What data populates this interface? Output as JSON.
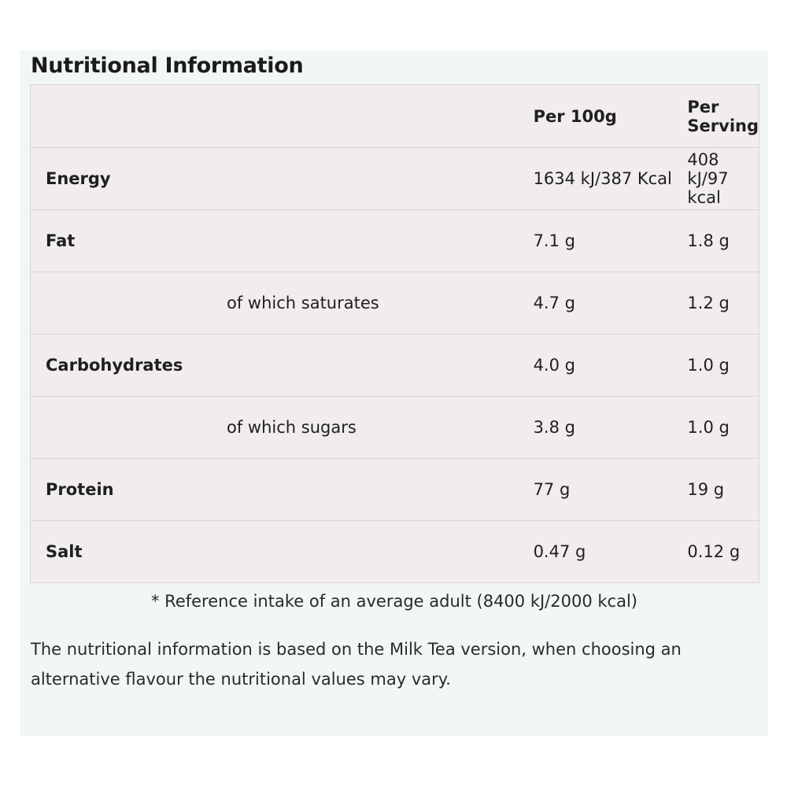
{
  "title": "Nutritional Information",
  "table": {
    "header": {
      "nutrient": "",
      "per_100g": "Per 100g",
      "per_serving": "Per Serving"
    },
    "rows": [
      {
        "label": "Energy",
        "per_100g": "1634 kJ/387 Kcal",
        "per_serving": "408 kJ/97 kcal"
      },
      {
        "label": "Fat",
        "per_100g": "7.1 g",
        "per_serving": "1.8 g"
      },
      {
        "label": "of which saturates",
        "per_100g": "4.7 g",
        "per_serving": "1.2 g"
      },
      {
        "label": "Carbohydrates",
        "per_100g": "4.0 g",
        "per_serving": "1.0 g"
      },
      {
        "label": "of which sugars",
        "per_100g": "3.8 g",
        "per_serving": "1.0 g"
      },
      {
        "label": "Protein",
        "per_100g": "77 g",
        "per_serving": "19 g"
      },
      {
        "label": "Salt",
        "per_100g": "0.47 g",
        "per_serving": "0.12 g"
      }
    ]
  },
  "footnote": "* Reference intake of an average adult (8400 kJ/2000 kcal)",
  "note": "The nutritional information is based on the Milk Tea version, when choosing an alternative flavour the nutritional values may vary.",
  "colors": {
    "panel_background": "#f1f6f6",
    "table_background": "#f1eded",
    "border": "#d8d4d4",
    "text": "#1f1f1f"
  }
}
